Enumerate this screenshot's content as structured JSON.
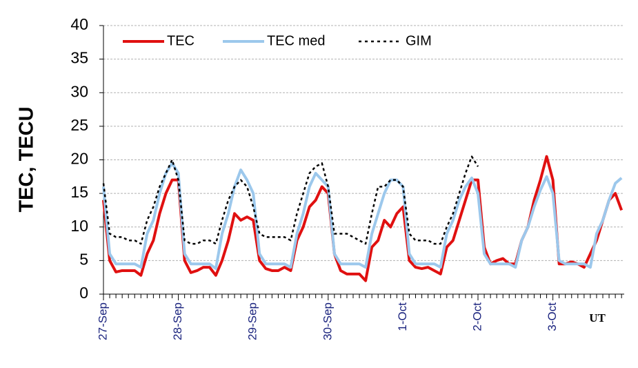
{
  "chart_data": {
    "type": "line",
    "y_label": "TEC, TECU",
    "x_annotation": "UT",
    "categories": [
      "27-Sep",
      null,
      null,
      null,
      null,
      null,
      null,
      null,
      null,
      null,
      null,
      null,
      "28-Sep",
      null,
      null,
      null,
      null,
      null,
      null,
      null,
      null,
      null,
      null,
      null,
      "29-Sep",
      null,
      null,
      null,
      null,
      null,
      null,
      null,
      null,
      null,
      null,
      null,
      "30-Sep",
      null,
      null,
      null,
      null,
      null,
      null,
      null,
      null,
      null,
      null,
      null,
      "1-Oct",
      null,
      null,
      null,
      null,
      null,
      null,
      null,
      null,
      null,
      null,
      null,
      "2-Oct",
      null,
      null,
      null,
      null,
      null,
      null,
      null,
      null,
      null,
      null,
      null,
      "3-Oct",
      null,
      null,
      null,
      null,
      null,
      null,
      null,
      null,
      null,
      null,
      null
    ],
    "series": [
      {
        "name": "TEC",
        "color": "#e01010",
        "values": [
          14,
          5,
          3.3,
          3.5,
          3.5,
          3.5,
          2.8,
          6,
          8,
          12,
          15,
          17,
          17,
          5,
          3.2,
          3.5,
          4,
          4,
          2.8,
          5,
          8,
          12,
          11,
          11.5,
          11,
          5,
          3.8,
          3.5,
          3.5,
          4,
          3.5,
          8,
          10,
          13,
          14,
          16,
          15,
          6,
          3.5,
          3,
          3,
          3,
          2,
          7,
          8,
          11,
          10,
          12,
          13,
          5,
          4,
          3.8,
          4,
          3.5,
          3,
          7,
          8,
          11,
          14,
          17,
          17,
          7,
          4.5,
          5,
          5.3,
          4.5,
          4.5,
          8,
          10,
          14,
          17,
          20.5,
          17,
          4.5,
          4.5,
          4.8,
          4.5,
          4,
          6,
          8,
          11,
          14,
          15,
          12.5
        ]
      },
      {
        "name": "TEC med",
        "color": "#9cc8ec",
        "values": [
          16,
          6,
          4.5,
          4.5,
          4.5,
          4.5,
          4,
          9,
          11,
          15,
          18,
          19.5,
          18,
          6,
          4.5,
          4.5,
          4.5,
          4.5,
          3.8,
          9,
          12,
          16,
          18.5,
          17,
          15,
          6,
          4.5,
          4.5,
          4.5,
          4.5,
          4,
          9,
          12,
          16,
          18,
          17,
          16,
          6,
          4.5,
          4.5,
          4.5,
          4.5,
          4,
          9,
          12,
          15,
          17,
          17,
          16,
          6,
          4.5,
          4.5,
          4.5,
          4.5,
          4,
          9,
          11,
          14,
          16,
          17.3,
          15,
          6,
          4.5,
          4.5,
          4.5,
          4.5,
          4,
          8,
          10,
          13,
          15.5,
          17.5,
          15,
          5,
          4.5,
          4.5,
          4.5,
          4.5,
          4,
          9,
          11,
          14,
          16.5,
          17.3
        ]
      },
      {
        "name": "GIM",
        "color": "#000000",
        "dashed": true,
        "values": [
          16.5,
          9,
          8.5,
          8.5,
          8,
          8,
          7.5,
          11,
          13,
          16,
          18,
          20,
          17,
          8,
          7.5,
          7.5,
          8,
          8,
          7.5,
          11,
          14,
          16,
          17,
          16,
          13,
          9,
          8.5,
          8.5,
          8.5,
          8.5,
          8,
          12,
          15,
          18,
          19,
          19.5,
          16,
          9,
          9,
          9,
          8.5,
          8,
          7.5,
          12,
          16,
          16,
          17,
          17,
          16,
          9,
          8,
          8,
          8,
          7.5,
          7.5,
          10,
          12,
          15,
          18,
          20.5,
          19,
          null,
          null,
          null,
          null,
          null,
          null,
          null,
          null,
          null,
          null,
          null,
          null,
          null,
          null,
          null,
          null,
          null,
          null,
          null,
          null,
          null,
          null,
          null
        ]
      }
    ],
    "ylim": [
      0,
      40
    ],
    "yticks": [
      0,
      5,
      10,
      15,
      20,
      25,
      30,
      35,
      40
    ],
    "grid": true,
    "legend": "top"
  }
}
